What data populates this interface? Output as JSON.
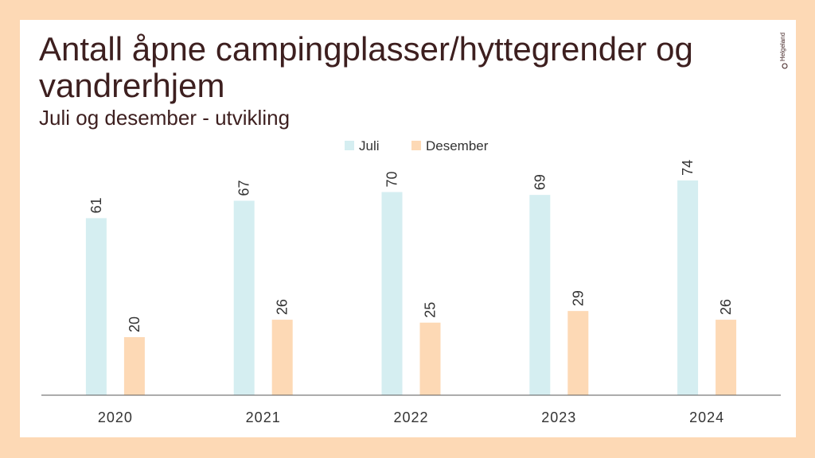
{
  "brand": {
    "logo_text": "Helgeland"
  },
  "chart_data": {
    "type": "bar",
    "title": "Antall åpne campingplasser/hyttegrender og vandrerhjem",
    "subtitle": "Juli og desember - utvikling",
    "categories": [
      "2020",
      "2021",
      "2022",
      "2023",
      "2024"
    ],
    "series": [
      {
        "name": "Juli",
        "values": [
          61,
          67,
          70,
          69,
          74
        ],
        "color": "#d5eef1"
      },
      {
        "name": "Desember",
        "values": [
          20,
          26,
          25,
          29,
          26
        ],
        "color": "#fdd9b5"
      }
    ],
    "ylim": [
      0,
      80
    ],
    "grid": false,
    "legend_position": "top-center",
    "data_labels": true
  }
}
